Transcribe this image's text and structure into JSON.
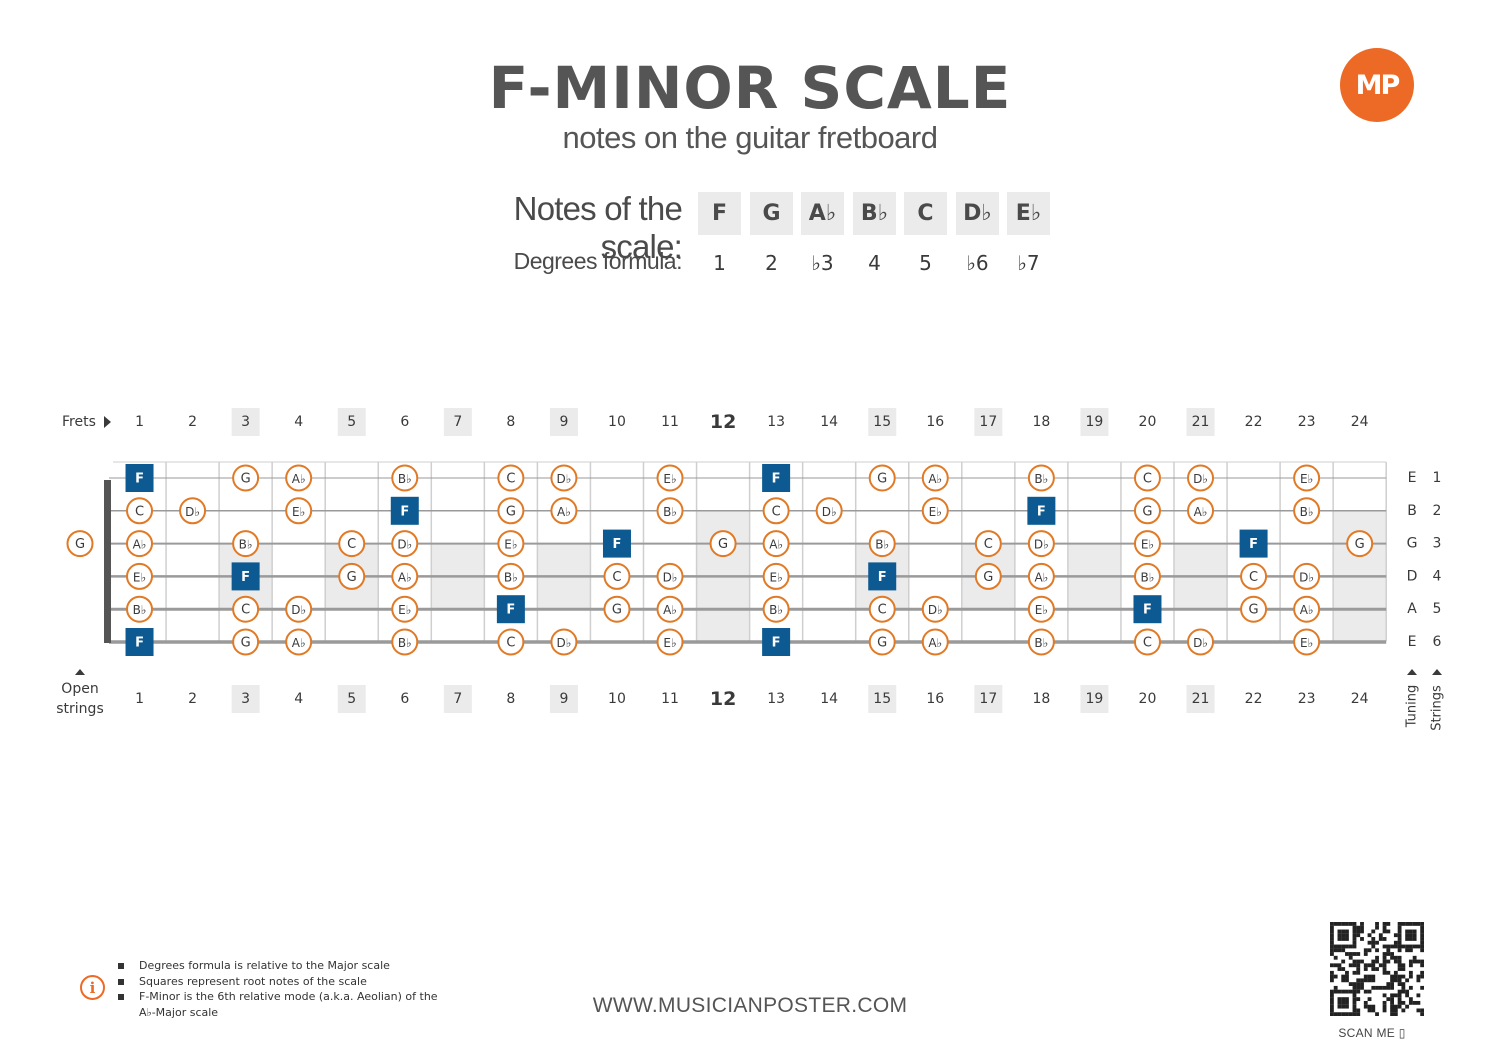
{
  "header": {
    "title": "F-MINOR SCALE",
    "subtitle": "notes on the guitar fretboard"
  },
  "logo": {
    "text": "MP",
    "color": "#ec6a25"
  },
  "scale": {
    "notes_label": "Notes of the scale:",
    "degrees_label": "Degrees formula:",
    "notes": [
      "F",
      "G",
      "A♭",
      "B♭",
      "C",
      "D♭",
      "E♭"
    ],
    "degrees": [
      "1",
      "2",
      "♭3",
      "4",
      "5",
      "♭6",
      "♭7"
    ]
  },
  "fretboard": {
    "frets_label": "Frets",
    "frets": [
      1,
      2,
      3,
      4,
      5,
      6,
      7,
      8,
      9,
      10,
      11,
      12,
      13,
      14,
      15,
      16,
      17,
      18,
      19,
      20,
      21,
      22,
      23,
      24
    ],
    "highlighted_frets": [
      3,
      5,
      7,
      9,
      15,
      17,
      19,
      21
    ],
    "emphasized_fret": 12,
    "open_strings_label": "Open strings",
    "tuning_label": "Tuning",
    "strings_label": "Strings",
    "open_string_notes": [
      {
        "string": 3,
        "note": "G"
      }
    ],
    "strings": [
      {
        "number": 1,
        "tuning": "E",
        "notes": [
          {
            "fret": 1,
            "note": "F",
            "root": true
          },
          {
            "fret": 3,
            "note": "G"
          },
          {
            "fret": 4,
            "note": "Ab"
          },
          {
            "fret": 6,
            "note": "Bb"
          },
          {
            "fret": 8,
            "note": "C"
          },
          {
            "fret": 9,
            "note": "Db"
          },
          {
            "fret": 11,
            "note": "Eb"
          },
          {
            "fret": 13,
            "note": "F",
            "root": true
          },
          {
            "fret": 15,
            "note": "G"
          },
          {
            "fret": 16,
            "note": "Ab"
          },
          {
            "fret": 18,
            "note": "Bb"
          },
          {
            "fret": 20,
            "note": "C"
          },
          {
            "fret": 21,
            "note": "Db"
          },
          {
            "fret": 23,
            "note": "Eb"
          }
        ]
      },
      {
        "number": 2,
        "tuning": "B",
        "notes": [
          {
            "fret": 1,
            "note": "C"
          },
          {
            "fret": 2,
            "note": "Db"
          },
          {
            "fret": 4,
            "note": "Eb"
          },
          {
            "fret": 6,
            "note": "F",
            "root": true
          },
          {
            "fret": 8,
            "note": "G"
          },
          {
            "fret": 9,
            "note": "Ab"
          },
          {
            "fret": 11,
            "note": "Bb"
          },
          {
            "fret": 13,
            "note": "C"
          },
          {
            "fret": 14,
            "note": "Db"
          },
          {
            "fret": 16,
            "note": "Eb"
          },
          {
            "fret": 18,
            "note": "F",
            "root": true
          },
          {
            "fret": 20,
            "note": "G"
          },
          {
            "fret": 21,
            "note": "Ab"
          },
          {
            "fret": 23,
            "note": "Bb"
          }
        ]
      },
      {
        "number": 3,
        "tuning": "G",
        "notes": [
          {
            "fret": 1,
            "note": "Ab"
          },
          {
            "fret": 3,
            "note": "Bb"
          },
          {
            "fret": 5,
            "note": "C"
          },
          {
            "fret": 6,
            "note": "Db"
          },
          {
            "fret": 8,
            "note": "Eb"
          },
          {
            "fret": 10,
            "note": "F",
            "root": true
          },
          {
            "fret": 12,
            "note": "G"
          },
          {
            "fret": 13,
            "note": "Ab"
          },
          {
            "fret": 15,
            "note": "Bb"
          },
          {
            "fret": 17,
            "note": "C"
          },
          {
            "fret": 18,
            "note": "Db"
          },
          {
            "fret": 20,
            "note": "Eb"
          },
          {
            "fret": 22,
            "note": "F",
            "root": true
          },
          {
            "fret": 24,
            "note": "G"
          }
        ]
      },
      {
        "number": 4,
        "tuning": "D",
        "notes": [
          {
            "fret": 1,
            "note": "Eb"
          },
          {
            "fret": 3,
            "note": "F",
            "root": true
          },
          {
            "fret": 5,
            "note": "G"
          },
          {
            "fret": 6,
            "note": "Ab"
          },
          {
            "fret": 8,
            "note": "Bb"
          },
          {
            "fret": 10,
            "note": "C"
          },
          {
            "fret": 11,
            "note": "Db"
          },
          {
            "fret": 13,
            "note": "Eb"
          },
          {
            "fret": 15,
            "note": "F",
            "root": true
          },
          {
            "fret": 17,
            "note": "G"
          },
          {
            "fret": 18,
            "note": "Ab"
          },
          {
            "fret": 20,
            "note": "Bb"
          },
          {
            "fret": 22,
            "note": "C"
          },
          {
            "fret": 23,
            "note": "Db"
          }
        ]
      },
      {
        "number": 5,
        "tuning": "A",
        "notes": [
          {
            "fret": 1,
            "note": "Bb"
          },
          {
            "fret": 3,
            "note": "C"
          },
          {
            "fret": 4,
            "note": "Db"
          },
          {
            "fret": 6,
            "note": "Eb"
          },
          {
            "fret": 8,
            "note": "F",
            "root": true
          },
          {
            "fret": 10,
            "note": "G"
          },
          {
            "fret": 11,
            "note": "Ab"
          },
          {
            "fret": 13,
            "note": "Bb"
          },
          {
            "fret": 15,
            "note": "C"
          },
          {
            "fret": 16,
            "note": "Db"
          },
          {
            "fret": 18,
            "note": "Eb"
          },
          {
            "fret": 20,
            "note": "F",
            "root": true
          },
          {
            "fret": 22,
            "note": "G"
          },
          {
            "fret": 23,
            "note": "Ab"
          }
        ]
      },
      {
        "number": 6,
        "tuning": "E",
        "notes": [
          {
            "fret": 1,
            "note": "F",
            "root": true
          },
          {
            "fret": 3,
            "note": "G"
          },
          {
            "fret": 4,
            "note": "Ab"
          },
          {
            "fret": 6,
            "note": "Bb"
          },
          {
            "fret": 8,
            "note": "C"
          },
          {
            "fret": 9,
            "note": "Db"
          },
          {
            "fret": 11,
            "note": "Eb"
          },
          {
            "fret": 13,
            "note": "F",
            "root": true
          },
          {
            "fret": 15,
            "note": "G"
          },
          {
            "fret": 16,
            "note": "Ab"
          },
          {
            "fret": 18,
            "note": "Bb"
          },
          {
            "fret": 20,
            "note": "C"
          },
          {
            "fret": 21,
            "note": "Db"
          },
          {
            "fret": 23,
            "note": "Eb"
          }
        ]
      }
    ],
    "colors": {
      "note_ring": "#e07a26",
      "root_fill": "#0c5a91",
      "string": "#9a9a9a",
      "nut": "#555555",
      "highlight": "#ebebeb"
    }
  },
  "info": {
    "items": [
      "Degrees formula is relative to the Major scale",
      "Squares represent root notes of the scale",
      "F-Minor is the 6th relative mode (a.k.a. Aeolian) of the A♭-Major scale"
    ]
  },
  "footer": {
    "url": "WWW.MUSICIANPOSTER.COM",
    "scan_label": "SCAN ME"
  }
}
